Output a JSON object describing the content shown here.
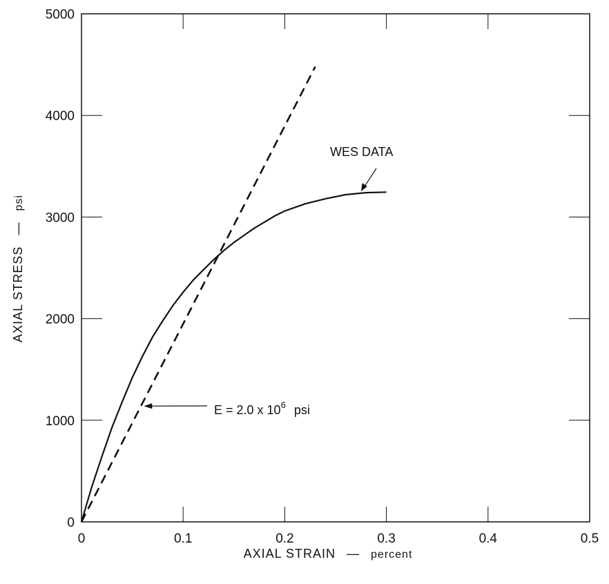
{
  "chart_data": {
    "type": "line",
    "title": "",
    "xlabel": "AXIAL STRAIN",
    "xunit": "percent",
    "ylabel": "AXIAL STRESS",
    "yunit": "psi",
    "xlim": [
      0,
      0.5
    ],
    "ylim": [
      0,
      5000
    ],
    "x_ticks": [
      "0",
      "0.1",
      "0.2",
      "0.3",
      "0.4",
      "0.5"
    ],
    "y_ticks": [
      "0",
      "1000",
      "2000",
      "3000",
      "4000",
      "5000"
    ],
    "grid": false,
    "series": [
      {
        "name": "WES DATA",
        "style": "solid",
        "x": [
          0,
          0.01,
          0.02,
          0.03,
          0.04,
          0.05,
          0.06,
          0.07,
          0.08,
          0.09,
          0.1,
          0.11,
          0.12,
          0.13,
          0.14,
          0.15,
          0.16,
          0.17,
          0.18,
          0.19,
          0.2,
          0.22,
          0.24,
          0.26,
          0.28,
          0.3
        ],
        "y": [
          0,
          340,
          640,
          930,
          1180,
          1420,
          1630,
          1820,
          1980,
          2130,
          2260,
          2380,
          2480,
          2580,
          2670,
          2750,
          2820,
          2890,
          2950,
          3010,
          3060,
          3130,
          3180,
          3220,
          3240,
          3245
        ]
      },
      {
        "name": "E = 2.0 x 10^6 psi",
        "style": "dashed",
        "x": [
          0,
          0.23
        ],
        "y": [
          0,
          4480
        ]
      }
    ],
    "annotations": [
      {
        "text_base": "E = 2.0 x 10",
        "text_exp": "6",
        "text_unit": "psi",
        "target": [
          0.06,
          1140
        ]
      },
      {
        "text": "WES DATA",
        "target": [
          0.275,
          3240
        ]
      }
    ]
  }
}
